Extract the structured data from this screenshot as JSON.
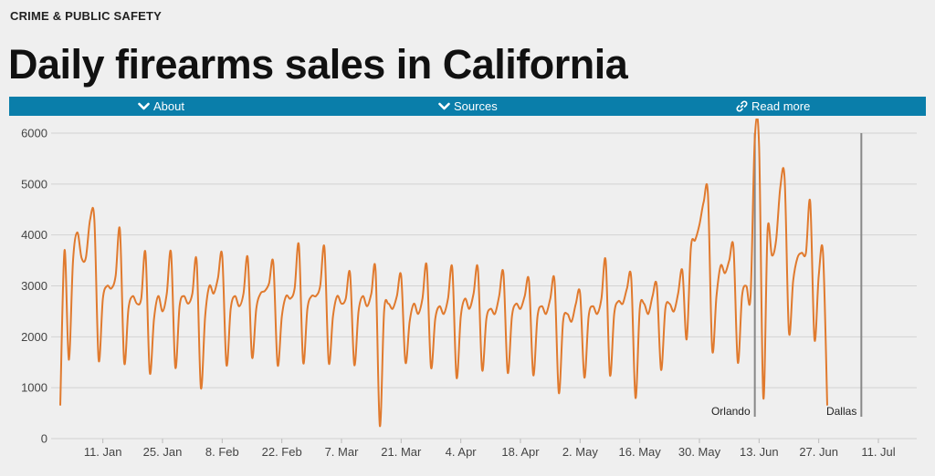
{
  "header": {
    "section": "CRIME & PUBLIC SAFETY",
    "title": "Daily firearms sales in California"
  },
  "toolbar": {
    "about_label": "About",
    "sources_label": "Sources",
    "read_more_label": "Read more",
    "about_icon": "chevron-down-icon",
    "sources_icon": "chevron-down-icon",
    "read_more_icon": "link-icon"
  },
  "chart_data": {
    "type": "line",
    "line_color": "#e07a2e",
    "grid": true,
    "ylim": [
      0,
      6000
    ],
    "yticks": [
      0,
      1000,
      2000,
      3000,
      4000,
      5000,
      6000
    ],
    "x_range": [
      "2016-01-01",
      "2016-07-20"
    ],
    "xticks": [
      {
        "date": "2016-01-11",
        "label": "11. Jan"
      },
      {
        "date": "2016-01-25",
        "label": "25. Jan"
      },
      {
        "date": "2016-02-08",
        "label": "8. Feb"
      },
      {
        "date": "2016-02-22",
        "label": "22. Feb"
      },
      {
        "date": "2016-03-07",
        "label": "7. Mar"
      },
      {
        "date": "2016-03-21",
        "label": "21. Mar"
      },
      {
        "date": "2016-04-04",
        "label": "4. Apr"
      },
      {
        "date": "2016-04-18",
        "label": "18. Apr"
      },
      {
        "date": "2016-05-02",
        "label": "2. May"
      },
      {
        "date": "2016-05-16",
        "label": "16. May"
      },
      {
        "date": "2016-05-30",
        "label": "30. May"
      },
      {
        "date": "2016-06-13",
        "label": "13. Jun"
      },
      {
        "date": "2016-06-27",
        "label": "27. Jun"
      },
      {
        "date": "2016-07-11",
        "label": "11. Jul"
      }
    ],
    "annotations": [
      {
        "date": "2016-06-12",
        "label": "Orlando"
      },
      {
        "date": "2016-07-07",
        "label": "Dallas"
      }
    ],
    "series": [
      {
        "start": "2016-01-01",
        "values": [
          650,
          3700,
          1550,
          3500,
          4050,
          3550,
          3550,
          4300,
          4300,
          1550,
          2750,
          3000,
          2950,
          3200,
          4100,
          1500,
          2550,
          2800,
          2650,
          2750,
          3650,
          1300,
          2350,
          2800,
          2500,
          2850,
          3650,
          1400,
          2600,
          2800,
          2650,
          2850,
          3500,
          1000,
          2400,
          3000,
          2850,
          3150,
          3600,
          1450,
          2550,
          2800,
          2600,
          2850,
          3550,
          1600,
          2550,
          2850,
          2900,
          3050,
          3450,
          1450,
          2400,
          2800,
          2750,
          2950,
          3800,
          1500,
          2550,
          2800,
          2800,
          3000,
          3750,
          1500,
          2400,
          2800,
          2650,
          2750,
          3250,
          1450,
          2500,
          2800,
          2600,
          2850,
          3300,
          250,
          2500,
          2650,
          2550,
          2800,
          3200,
          1500,
          2300,
          2650,
          2450,
          2750,
          3400,
          1400,
          2350,
          2600,
          2450,
          2750,
          3350,
          1200,
          2400,
          2750,
          2550,
          2850,
          3350,
          1350,
          2350,
          2550,
          2450,
          2800,
          3250,
          1300,
          2400,
          2650,
          2550,
          2800,
          3100,
          1250,
          2400,
          2600,
          2450,
          2750,
          3100,
          900,
          2300,
          2450,
          2300,
          2650,
          2850,
          1200,
          2400,
          2600,
          2450,
          2750,
          3500,
          1250,
          2450,
          2700,
          2650,
          2950,
          3150,
          800,
          2550,
          2650,
          2450,
          2800,
          3000,
          1350,
          2550,
          2650,
          2500,
          2850,
          3300,
          1950,
          3750,
          3900,
          4200,
          4650,
          4800,
          1750,
          2800,
          3400,
          3250,
          3500,
          3750,
          1500,
          2800,
          3000,
          2800,
          5900,
          5750,
          800,
          4100,
          3600,
          3900,
          4950,
          5100,
          2100,
          3100,
          3550,
          3650,
          3650,
          4650,
          1950,
          3200,
          3650,
          650
        ]
      }
    ]
  }
}
